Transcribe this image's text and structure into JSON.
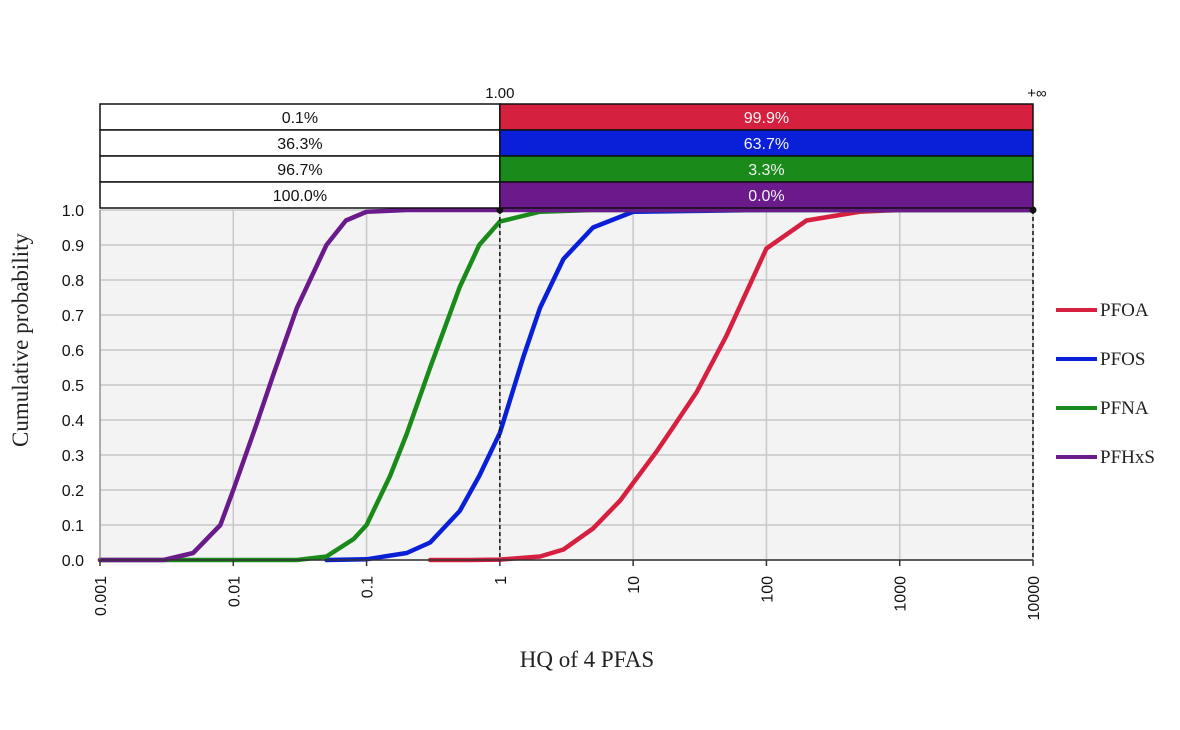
{
  "chart_data": {
    "type": "line",
    "xscale": "log",
    "xlim": [
      0.001,
      10000
    ],
    "ylim": [
      0.0,
      1.0
    ],
    "xlabel": "HQ of 4 PFAS",
    "ylabel": "Cumulative probability",
    "xticks": [
      "0.001",
      "0.01",
      "0.1",
      "1",
      "10",
      "100",
      "1000",
      "10000"
    ],
    "yticks": [
      "0.0",
      "0.1",
      "0.2",
      "0.3",
      "0.4",
      "0.5",
      "0.6",
      "0.7",
      "0.8",
      "0.9",
      "1.0"
    ],
    "grid": true,
    "legend": "right",
    "threshold": {
      "value": 1,
      "label_left": "1.00",
      "label_right": "+∞"
    },
    "series": [
      {
        "name": "PFOA",
        "color": "#d62040",
        "below": "0.1%",
        "above": "99.9%",
        "x": [
          0.3,
          0.6,
          1,
          2,
          3,
          5,
          8,
          10,
          15,
          20,
          30,
          50,
          100,
          200,
          500,
          1000,
          10000
        ],
        "y": [
          0.0,
          0.0,
          0.001,
          0.01,
          0.03,
          0.09,
          0.17,
          0.22,
          0.31,
          0.38,
          0.48,
          0.64,
          0.89,
          0.97,
          0.995,
          1.0,
          1.0
        ]
      },
      {
        "name": "PFOS",
        "color": "#0a1fd8",
        "below": "36.3%",
        "above": "63.7%",
        "x": [
          0.05,
          0.1,
          0.2,
          0.3,
          0.5,
          0.7,
          1,
          1.5,
          2,
          3,
          5,
          10,
          100,
          10000
        ],
        "y": [
          0.0,
          0.002,
          0.02,
          0.05,
          0.14,
          0.24,
          0.363,
          0.58,
          0.72,
          0.86,
          0.95,
          0.995,
          1.0,
          1.0
        ]
      },
      {
        "name": "PFNA",
        "color": "#1a8a1a",
        "below": "96.7%",
        "above": "3.3%",
        "x": [
          0.001,
          0.03,
          0.05,
          0.08,
          0.1,
          0.15,
          0.2,
          0.3,
          0.5,
          0.7,
          1,
          2,
          5,
          10000
        ],
        "y": [
          0.0,
          0.0,
          0.01,
          0.06,
          0.1,
          0.24,
          0.36,
          0.55,
          0.78,
          0.9,
          0.967,
          0.995,
          1.0,
          1.0
        ]
      },
      {
        "name": "PFHxS",
        "color": "#6a1a8a",
        "below": "100.0%",
        "above": "0.0%",
        "x": [
          0.001,
          0.003,
          0.005,
          0.008,
          0.01,
          0.015,
          0.02,
          0.03,
          0.05,
          0.07,
          0.1,
          0.2,
          10000
        ],
        "y": [
          0.0,
          0.0,
          0.02,
          0.1,
          0.2,
          0.39,
          0.53,
          0.72,
          0.9,
          0.97,
          0.995,
          1.0,
          1.0
        ]
      }
    ]
  }
}
